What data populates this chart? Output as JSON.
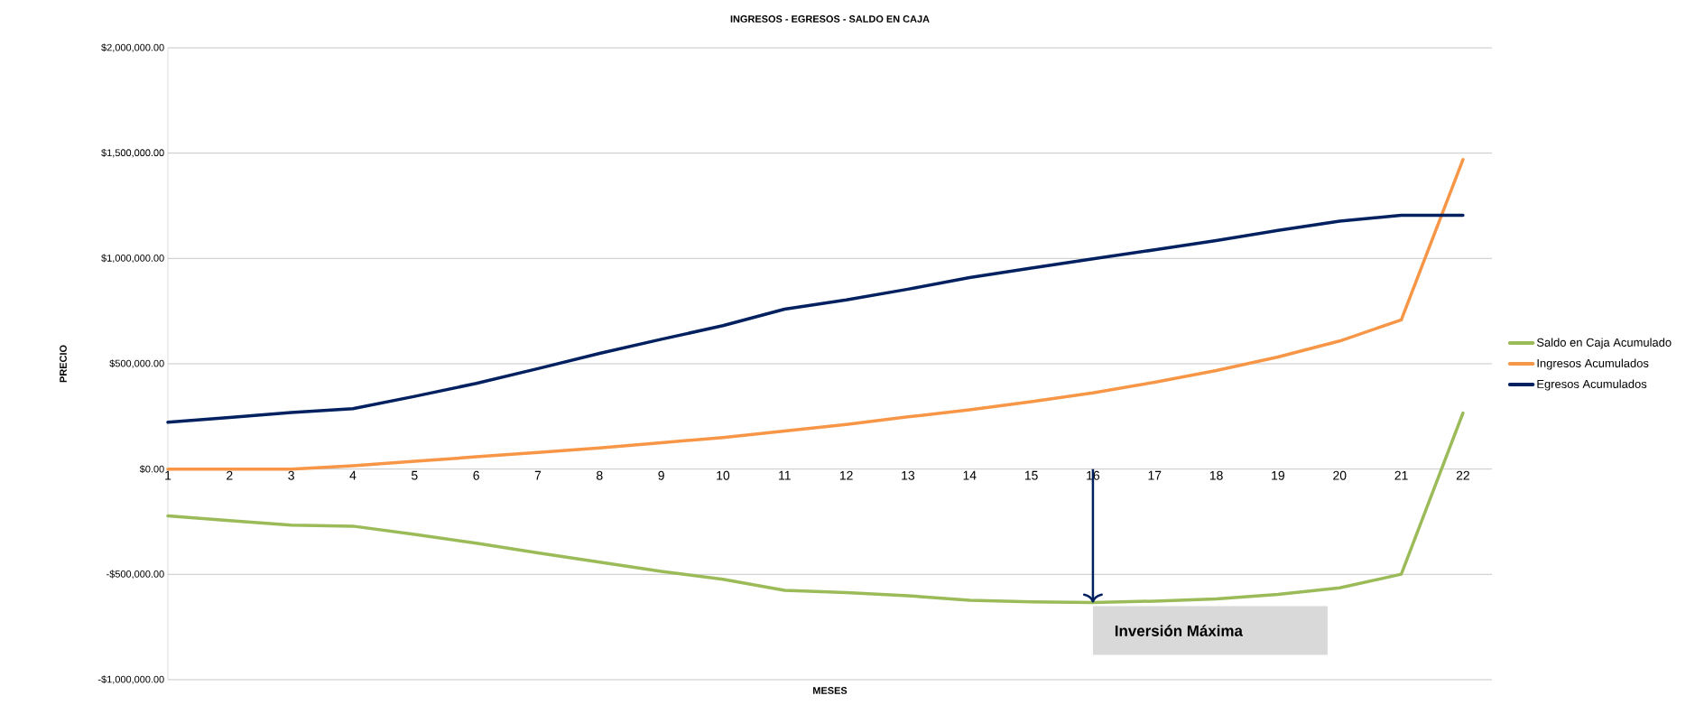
{
  "chart_data": {
    "type": "line",
    "title": "INGRESOS - EGRESOS - SALDO EN CAJA",
    "xlabel": "MESES",
    "ylabel": "PRECIO",
    "categories": [
      "1",
      "2",
      "3",
      "4",
      "5",
      "6",
      "7",
      "8",
      "9",
      "10",
      "11",
      "12",
      "13",
      "14",
      "15",
      "16",
      "17",
      "18",
      "19",
      "20",
      "21",
      "22"
    ],
    "series": [
      {
        "name": "Saldo en Caja Acumulado",
        "color": "#9bbb59",
        "values": [
          -222000,
          -245000,
          -266000,
          -271000,
          -310000,
          -352000,
          -398000,
          -442000,
          -486000,
          -523000,
          -576000,
          -586000,
          -601000,
          -623000,
          -630000,
          -634000,
          -627000,
          -617000,
          -595000,
          -564000,
          -499000,
          266000
        ]
      },
      {
        "name": "Ingresos Acumulados",
        "color": "#f79646",
        "values": [
          0,
          0,
          0,
          16000,
          37000,
          58000,
          79000,
          100000,
          125000,
          150000,
          181000,
          212000,
          248000,
          281000,
          320000,
          362000,
          412000,
          468000,
          532000,
          608000,
          708000,
          1469000
        ]
      },
      {
        "name": "Egresos Acumulados",
        "color": "#002060",
        "values": [
          222000,
          245000,
          268000,
          287000,
          345000,
          407000,
          477000,
          549000,
          616000,
          681000,
          759000,
          803000,
          854000,
          909000,
          954000,
          998000,
          1041000,
          1085000,
          1133000,
          1177000,
          1205000,
          1205000
        ]
      }
    ],
    "ylim": [
      -1000000,
      2000000
    ],
    "yticks": [
      {
        "value": -1000000,
        "label": "-$1,000,000.00"
      },
      {
        "value": -500000,
        "label": "-$500,000.00"
      },
      {
        "value": 0,
        "label": "$0.00"
      },
      {
        "value": 500000,
        "label": "$500,000.00"
      },
      {
        "value": 1000000,
        "label": "$1,000,000.00"
      },
      {
        "value": 1500000,
        "label": "$1,500,000.00"
      },
      {
        "value": 2000000,
        "label": "$2,000,000.00"
      }
    ],
    "grid": "y",
    "legend": "right",
    "annotations": [
      {
        "text": "Inversión Máxima",
        "x": "16",
        "y": -634000
      }
    ]
  }
}
